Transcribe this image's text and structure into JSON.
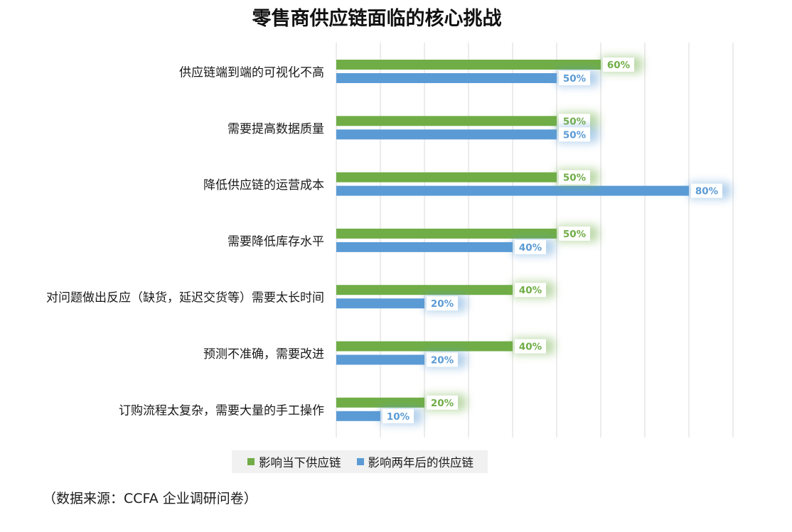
{
  "chart_data": {
    "type": "bar",
    "orientation": "horizontal",
    "title": "零售商供应链面临的核心挑战",
    "categories": [
      "供应链端到端的可视化不高",
      "需要提高数据质量",
      "降低供应链的运营成本",
      "需要降低库存水平",
      "对问题做出反应（缺货，延迟交货等）需要太长时间",
      "预测不准确，需要改进",
      "订购流程太复杂，需要大量的手工操作"
    ],
    "series": [
      {
        "name": "影响当下供应链",
        "color": "#70ad47",
        "values": [
          60,
          50,
          50,
          50,
          40,
          40,
          20
        ],
        "labels": [
          "60%",
          "50%",
          "50%",
          "50%",
          "40%",
          "40%",
          "20%"
        ]
      },
      {
        "name": "影响两年后的供应链",
        "color": "#5b9bd5",
        "values": [
          50,
          50,
          80,
          40,
          20,
          20,
          10
        ],
        "labels": [
          "50%",
          "50%",
          "80%",
          "40%",
          "20%",
          "20%",
          "10%"
        ]
      }
    ],
    "xlim": [
      0,
      90
    ],
    "grid": true,
    "legend": "bottom"
  },
  "source": "（数据来源：CCFA 企业调研问卷）"
}
